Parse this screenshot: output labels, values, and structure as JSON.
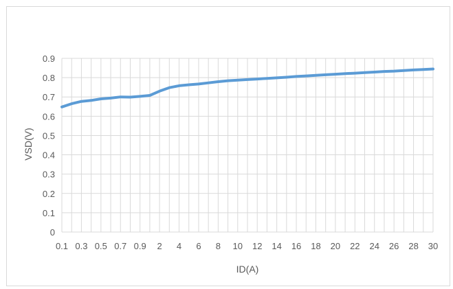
{
  "chart_data": {
    "type": "line",
    "title": "",
    "xlabel": "ID(A)",
    "ylabel": "VSD(V)",
    "ylim": [
      0,
      0.9
    ],
    "y_ticks": [
      "0",
      "0.1",
      "0.2",
      "0.3",
      "0.4",
      "0.5",
      "0.6",
      "0.7",
      "0.8",
      "0.9"
    ],
    "x_tick_labels": [
      "0.1",
      "0.3",
      "0.5",
      "0.7",
      "0.9",
      "2",
      "4",
      "6",
      "8",
      "10",
      "12",
      "14",
      "16",
      "18",
      "20",
      "22",
      "24",
      "26",
      "28",
      "30"
    ],
    "x_axis": "category",
    "grid": true,
    "legend": "none",
    "categories": [
      "0.1",
      "0.2",
      "0.3",
      "0.4",
      "0.5",
      "0.6",
      "0.7",
      "0.8",
      "0.9",
      "1",
      "2",
      "3",
      "4",
      "5",
      "6",
      "7",
      "8",
      "9",
      "10",
      "11",
      "12",
      "13",
      "14",
      "15",
      "16",
      "17",
      "18",
      "19",
      "20",
      "21",
      "22",
      "23",
      "24",
      "25",
      "26",
      "27",
      "28",
      "29",
      "30"
    ],
    "series": [
      {
        "color": "#5b9bd5",
        "values": [
          0.648,
          0.665,
          0.677,
          0.682,
          0.69,
          0.694,
          0.7,
          0.699,
          0.703,
          0.708,
          0.73,
          0.748,
          0.758,
          0.763,
          0.767,
          0.773,
          0.779,
          0.784,
          0.787,
          0.79,
          0.793,
          0.796,
          0.799,
          0.802,
          0.806,
          0.809,
          0.812,
          0.815,
          0.818,
          0.821,
          0.823,
          0.826,
          0.829,
          0.832,
          0.834,
          0.837,
          0.84,
          0.842,
          0.845
        ]
      }
    ],
    "colors": {
      "gridline": "#d9d9d9",
      "line": "#5b9bd5",
      "text": "#595959"
    }
  }
}
